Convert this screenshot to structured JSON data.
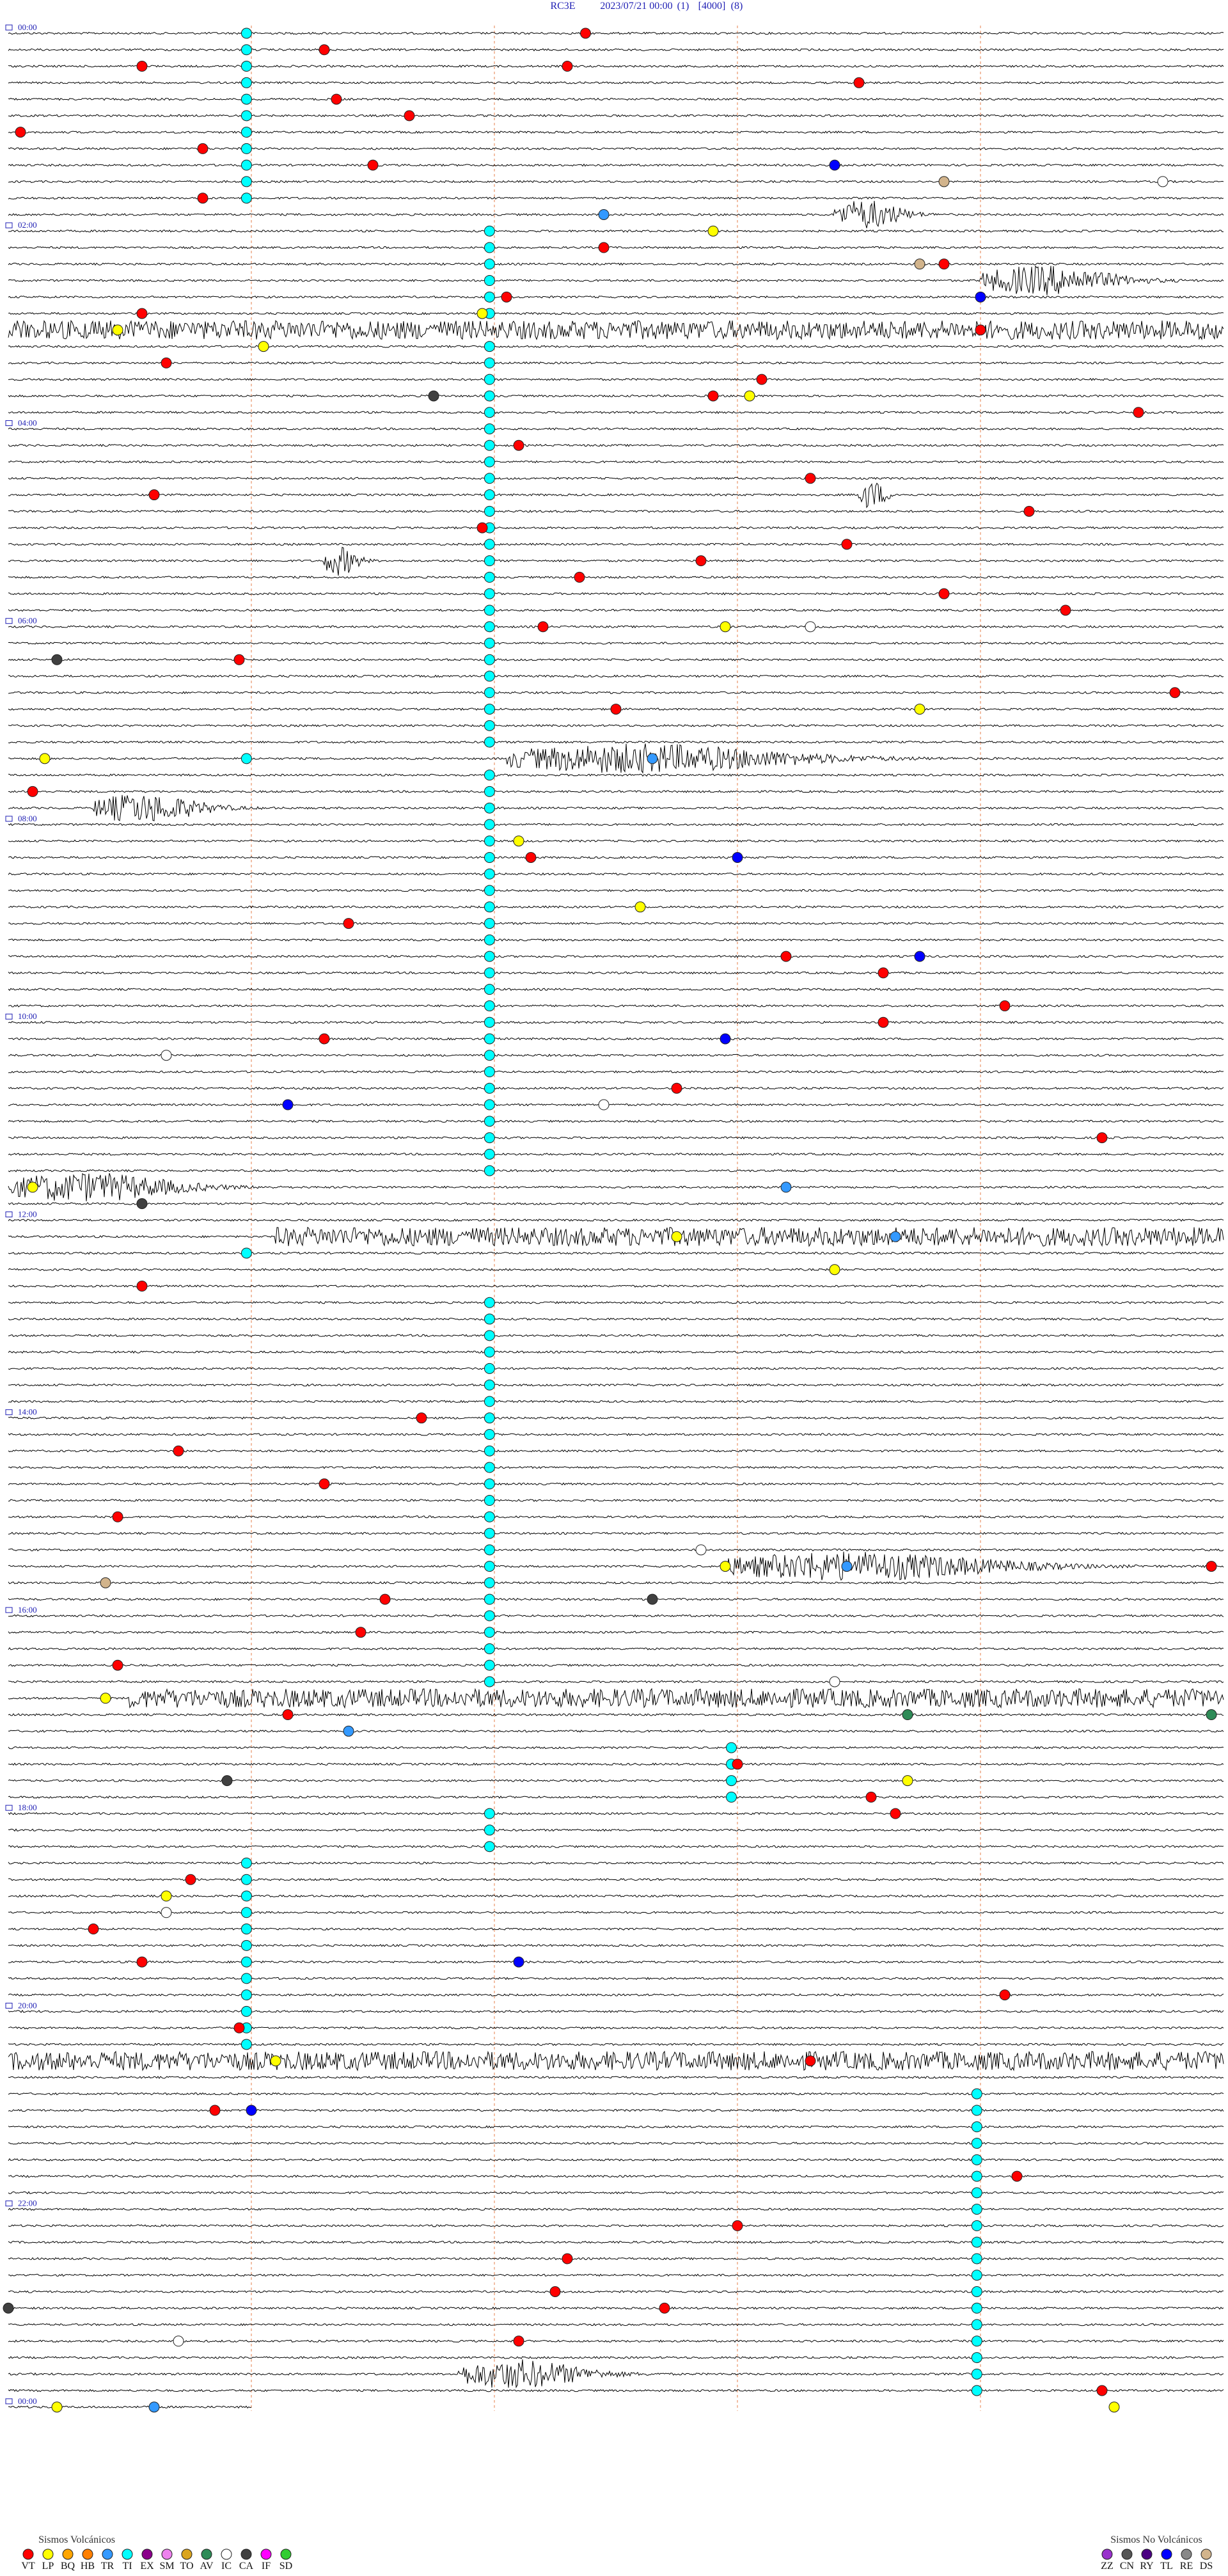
{
  "header": {
    "station": "RC3E",
    "datetime": "2023/07/21 00:00",
    "channel": "(1)",
    "gain": "[4000]",
    "scale": "(8)"
  },
  "time_labels": [
    {
      "line": 0,
      "text": "00:00"
    },
    {
      "line": 12,
      "text": "02:00"
    },
    {
      "line": 24,
      "text": "04:00"
    },
    {
      "line": 36,
      "text": "06:00"
    },
    {
      "line": 48,
      "text": "08:00"
    },
    {
      "line": 60,
      "text": "10:00"
    },
    {
      "line": 72,
      "text": "12:00"
    },
    {
      "line": 84,
      "text": "14:00"
    },
    {
      "line": 96,
      "text": "16:00"
    },
    {
      "line": 108,
      "text": "18:00"
    },
    {
      "line": 120,
      "text": "20:00"
    },
    {
      "line": 132,
      "text": "22:00"
    },
    {
      "line": 144,
      "text": "00:00"
    }
  ],
  "legend": {
    "volcanic": {
      "title": "Sismos Volcánicos",
      "items": [
        {
          "code": "VT",
          "color": "#ff0000"
        },
        {
          "code": "LP",
          "color": "#ffff00"
        },
        {
          "code": "BQ",
          "color": "#ffa500"
        },
        {
          "code": "HB",
          "color": "#ff7f00"
        },
        {
          "code": "TR",
          "color": "#3399ff"
        },
        {
          "code": "TI",
          "color": "#00ffff"
        },
        {
          "code": "EX",
          "color": "#8b008b"
        },
        {
          "code": "SM",
          "color": "#ee82ee"
        },
        {
          "code": "TO",
          "color": "#daa520"
        },
        {
          "code": "AV",
          "color": "#2e8b57"
        },
        {
          "code": "IC",
          "color": "#ffffff"
        },
        {
          "code": "CA",
          "color": "#404040"
        },
        {
          "code": "IF",
          "color": "#ff00ff"
        },
        {
          "code": "SD",
          "color": "#32cd32"
        }
      ]
    },
    "non_volcanic": {
      "title": "Sismos No Volcánicos",
      "items": [
        {
          "code": "ZZ",
          "color": "#9932cc"
        },
        {
          "code": "CN",
          "color": "#555555"
        },
        {
          "code": "RY",
          "color": "#4b0082"
        },
        {
          "code": "TL",
          "color": "#0000ff"
        },
        {
          "code": "RE",
          "color": "#888888"
        },
        {
          "code": "DS",
          "color": "#d2b48c"
        }
      ]
    }
  },
  "signals": [
    [
      11,
      6.8,
      1.0
    ],
    [
      15,
      8.0,
      2.0
    ],
    [
      18,
      0,
      10
    ],
    [
      28,
      7.0,
      0.4
    ],
    [
      32,
      2.6,
      0.5
    ],
    [
      44,
      4.1,
      4.3
    ],
    [
      47,
      0.7,
      1.6
    ],
    [
      70,
      0,
      2.5
    ],
    [
      73,
      2.2,
      7.8
    ],
    [
      93,
      5.9,
      4.1
    ],
    [
      101,
      1.0,
      9.0
    ],
    [
      123,
      0,
      10
    ],
    [
      142,
      3.7,
      1.9
    ]
  ],
  "events": [
    [
      "TI",
      0,
      1.96
    ],
    [
      "TI",
      1,
      1.96
    ],
    [
      "TI",
      2,
      1.96
    ],
    [
      "TI",
      3,
      1.96
    ],
    [
      "TI",
      4,
      1.96
    ],
    [
      "TI",
      5,
      1.96
    ],
    [
      "TI",
      6,
      1.96
    ],
    [
      "TI",
      7,
      1.96
    ],
    [
      "TI",
      8,
      1.96
    ],
    [
      "TI",
      9,
      1.96
    ],
    [
      "TI",
      10,
      1.96
    ],
    [
      "TI",
      12,
      3.96
    ],
    [
      "TI",
      13,
      3.96
    ],
    [
      "TI",
      14,
      3.96
    ],
    [
      "TI",
      15,
      3.96
    ],
    [
      "TI",
      16,
      3.96
    ],
    [
      "TI",
      17,
      3.96
    ],
    [
      "TI",
      19,
      3.96
    ],
    [
      "TI",
      20,
      3.96
    ],
    [
      "TI",
      21,
      3.96
    ],
    [
      "TI",
      22,
      3.96
    ],
    [
      "TI",
      23,
      3.96
    ],
    [
      "TI",
      24,
      3.96
    ],
    [
      "TI",
      25,
      3.96
    ],
    [
      "TI",
      26,
      3.96
    ],
    [
      "TI",
      27,
      3.96
    ],
    [
      "TI",
      28,
      3.96
    ],
    [
      "TI",
      29,
      3.96
    ],
    [
      "TI",
      30,
      3.96
    ],
    [
      "TI",
      31,
      3.96
    ],
    [
      "TI",
      32,
      3.96
    ],
    [
      "TI",
      33,
      3.96
    ],
    [
      "TI",
      34,
      3.96
    ],
    [
      "TI",
      35,
      3.96
    ],
    [
      "TI",
      36,
      3.96
    ],
    [
      "TI",
      37,
      3.96
    ],
    [
      "TI",
      38,
      3.96
    ],
    [
      "TI",
      39,
      3.96
    ],
    [
      "TI",
      40,
      3.96
    ],
    [
      "TI",
      41,
      3.96
    ],
    [
      "TI",
      42,
      3.96
    ],
    [
      "TI",
      43,
      3.96
    ],
    [
      "TI",
      45,
      3.96
    ],
    [
      "TI",
      46,
      3.96
    ],
    [
      "TI",
      47,
      3.96
    ],
    [
      "TI",
      48,
      3.96
    ],
    [
      "TI",
      49,
      3.96
    ],
    [
      "TI",
      50,
      3.96
    ],
    [
      "TI",
      51,
      3.96
    ],
    [
      "TI",
      52,
      3.96
    ],
    [
      "TI",
      53,
      3.96
    ],
    [
      "TI",
      54,
      3.96
    ],
    [
      "TI",
      55,
      3.96
    ],
    [
      "TI",
      56,
      3.96
    ],
    [
      "TI",
      57,
      3.96
    ],
    [
      "TI",
      58,
      3.96
    ],
    [
      "TI",
      59,
      3.96
    ],
    [
      "TI",
      60,
      3.96
    ],
    [
      "TI",
      61,
      3.96
    ],
    [
      "TI",
      62,
      3.96
    ],
    [
      "TI",
      63,
      3.96
    ],
    [
      "TI",
      64,
      3.96
    ],
    [
      "TI",
      65,
      3.96
    ],
    [
      "TI",
      66,
      3.96
    ],
    [
      "TI",
      67,
      3.96
    ],
    [
      "TI",
      68,
      3.96
    ],
    [
      "TI",
      69,
      3.96
    ],
    [
      "TI",
      44,
      1.96
    ],
    [
      "TI",
      74,
      1.96
    ],
    [
      "TI",
      77,
      3.96
    ],
    [
      "TI",
      78,
      3.96
    ],
    [
      "TI",
      79,
      3.96
    ],
    [
      "TI",
      80,
      3.96
    ],
    [
      "TI",
      81,
      3.96
    ],
    [
      "TI",
      82,
      3.96
    ],
    [
      "TI",
      83,
      3.96
    ],
    [
      "TI",
      84,
      3.96
    ],
    [
      "TI",
      85,
      3.96
    ],
    [
      "TI",
      86,
      3.96
    ],
    [
      "TI",
      87,
      3.96
    ],
    [
      "TI",
      88,
      3.96
    ],
    [
      "TI",
      89,
      3.96
    ],
    [
      "TI",
      90,
      3.96
    ],
    [
      "TI",
      91,
      3.96
    ],
    [
      "TI",
      92,
      3.96
    ],
    [
      "TI",
      93,
      3.96
    ],
    [
      "TI",
      94,
      3.96
    ],
    [
      "TI",
      95,
      3.96
    ],
    [
      "TI",
      96,
      3.96
    ],
    [
      "TI",
      97,
      3.96
    ],
    [
      "TI",
      98,
      3.96
    ],
    [
      "TI",
      99,
      3.96
    ],
    [
      "TI",
      100,
      3.96
    ],
    [
      "TI",
      104,
      5.95
    ],
    [
      "TI",
      105,
      5.95
    ],
    [
      "TI",
      106,
      5.95
    ],
    [
      "TI",
      107,
      5.95
    ],
    [
      "TI",
      108,
      3.96
    ],
    [
      "TI",
      109,
      3.96
    ],
    [
      "TI",
      110,
      3.96
    ],
    [
      "TI",
      111,
      1.96
    ],
    [
      "TI",
      112,
      1.96
    ],
    [
      "TI",
      113,
      1.96
    ],
    [
      "TI",
      114,
      1.96
    ],
    [
      "TI",
      115,
      1.96
    ],
    [
      "TI",
      116,
      1.96
    ],
    [
      "TI",
      117,
      1.96
    ],
    [
      "TI",
      118,
      1.96
    ],
    [
      "TI",
      119,
      1.96
    ],
    [
      "TI",
      120,
      1.96
    ],
    [
      "TI",
      121,
      1.96
    ],
    [
      "TI",
      122,
      1.96
    ],
    [
      "TI",
      125,
      7.97
    ],
    [
      "TI",
      126,
      7.97
    ],
    [
      "TI",
      127,
      7.97
    ],
    [
      "TI",
      128,
      7.97
    ],
    [
      "TI",
      129,
      7.97
    ],
    [
      "TI",
      130,
      7.97
    ],
    [
      "TI",
      131,
      7.97
    ],
    [
      "TI",
      132,
      7.97
    ],
    [
      "TI",
      133,
      7.97
    ],
    [
      "TI",
      134,
      7.97
    ],
    [
      "TI",
      135,
      7.97
    ],
    [
      "TI",
      136,
      7.97
    ],
    [
      "TI",
      137,
      7.97
    ],
    [
      "TI",
      138,
      7.97
    ],
    [
      "TI",
      139,
      7.97
    ],
    [
      "TI",
      140,
      7.97
    ],
    [
      "TI",
      141,
      7.97
    ],
    [
      "TI",
      142,
      7.97
    ],
    [
      "TI",
      143,
      7.97
    ],
    [
      "VT",
      0,
      4.75
    ],
    [
      "VT",
      1,
      2.6
    ],
    [
      "VT",
      2,
      1.1
    ],
    [
      "VT",
      2,
      4.6
    ],
    [
      "VT",
      3,
      7.0
    ],
    [
      "VT",
      4,
      2.7
    ],
    [
      "VT",
      5,
      3.3
    ],
    [
      "VT",
      6,
      0.1
    ],
    [
      "VT",
      7,
      1.6
    ],
    [
      "VT",
      8,
      3.0
    ],
    [
      "VT",
      10,
      1.6
    ],
    [
      "VT",
      13,
      4.9
    ],
    [
      "VT",
      14,
      7.7
    ],
    [
      "VT",
      16,
      4.1
    ],
    [
      "VT",
      17,
      1.1
    ],
    [
      "VT",
      18,
      8.0
    ],
    [
      "VT",
      20,
      1.3
    ],
    [
      "VT",
      21,
      6.2
    ],
    [
      "VT",
      22,
      5.8
    ],
    [
      "VT",
      23,
      9.3
    ],
    [
      "VT",
      25,
      4.2
    ],
    [
      "VT",
      27,
      6.6
    ],
    [
      "VT",
      28,
      1.2
    ],
    [
      "VT",
      29,
      8.4
    ],
    [
      "VT",
      30,
      3.9
    ],
    [
      "VT",
      31,
      6.9
    ],
    [
      "VT",
      32,
      5.7
    ],
    [
      "VT",
      33,
      4.7
    ],
    [
      "VT",
      34,
      7.7
    ],
    [
      "VT",
      35,
      8.7
    ],
    [
      "VT",
      36,
      4.4
    ],
    [
      "VT",
      38,
      1.9
    ],
    [
      "VT",
      40,
      9.6
    ],
    [
      "VT",
      41,
      5.0
    ],
    [
      "VT",
      46,
      0.2
    ],
    [
      "VT",
      50,
      4.3
    ],
    [
      "VT",
      54,
      2.8
    ],
    [
      "VT",
      56,
      6.4
    ],
    [
      "VT",
      57,
      7.2
    ],
    [
      "VT",
      59,
      8.2
    ],
    [
      "VT",
      60,
      7.2
    ],
    [
      "VT",
      61,
      2.6
    ],
    [
      "VT",
      64,
      5.5
    ],
    [
      "VT",
      67,
      9.0
    ],
    [
      "VT",
      76,
      1.1
    ],
    [
      "VT",
      84,
      3.4
    ],
    [
      "VT",
      86,
      1.4
    ],
    [
      "VT",
      88,
      2.6
    ],
    [
      "VT",
      90,
      0.9
    ],
    [
      "VT",
      93,
      9.9
    ],
    [
      "VT",
      95,
      3.1
    ],
    [
      "VT",
      97,
      2.9
    ],
    [
      "VT",
      99,
      0.9
    ],
    [
      "VT",
      102,
      2.3
    ],
    [
      "VT",
      105,
      6.0
    ],
    [
      "VT",
      107,
      7.1
    ],
    [
      "VT",
      108,
      7.3
    ],
    [
      "VT",
      112,
      1.5
    ],
    [
      "VT",
      115,
      0.7
    ],
    [
      "VT",
      117,
      1.1
    ],
    [
      "VT",
      119,
      8.2
    ],
    [
      "VT",
      121,
      1.9
    ],
    [
      "VT",
      123,
      6.6
    ],
    [
      "VT",
      126,
      1.7
    ],
    [
      "VT",
      130,
      8.3
    ],
    [
      "VT",
      133,
      6.0
    ],
    [
      "VT",
      135,
      4.6
    ],
    [
      "VT",
      137,
      4.5
    ],
    [
      "VT",
      138,
      5.4
    ],
    [
      "VT",
      140,
      4.2
    ],
    [
      "VT",
      143,
      9.0
    ],
    [
      "LP",
      12,
      5.8
    ],
    [
      "LP",
      17,
      3.9
    ],
    [
      "LP",
      18,
      0.9
    ],
    [
      "LP",
      19,
      2.1
    ],
    [
      "LP",
      22,
      6.1
    ],
    [
      "LP",
      36,
      5.9
    ],
    [
      "LP",
      41,
      7.5
    ],
    [
      "LP",
      44,
      0.3
    ],
    [
      "LP",
      49,
      4.2
    ],
    [
      "LP",
      53,
      5.2
    ],
    [
      "LP",
      70,
      0.2
    ],
    [
      "LP",
      73,
      5.5
    ],
    [
      "LP",
      75,
      6.8
    ],
    [
      "LP",
      93,
      5.9
    ],
    [
      "LP",
      101,
      0.8
    ],
    [
      "LP",
      106,
      7.4
    ],
    [
      "LP",
      113,
      1.3
    ],
    [
      "LP",
      123,
      2.2
    ],
    [
      "LP",
      144,
      0.4
    ],
    [
      "LP",
      144,
      9.1
    ],
    [
      "TL",
      8,
      6.8
    ],
    [
      "TL",
      16,
      8.0
    ],
    [
      "TL",
      50,
      6.0
    ],
    [
      "TL",
      56,
      7.5
    ],
    [
      "TL",
      61,
      5.9
    ],
    [
      "TL",
      65,
      2.3
    ],
    [
      "TL",
      117,
      4.2
    ],
    [
      "TL",
      126,
      2.0
    ],
    [
      "IC",
      9,
      9.5
    ],
    [
      "IC",
      36,
      6.6
    ],
    [
      "IC",
      62,
      1.3
    ],
    [
      "IC",
      65,
      4.9
    ],
    [
      "IC",
      92,
      5.7
    ],
    [
      "IC",
      100,
      6.8
    ],
    [
      "IC",
      114,
      1.3
    ],
    [
      "IC",
      140,
      1.4
    ],
    [
      "CA",
      22,
      3.5
    ],
    [
      "CA",
      38,
      0.4
    ],
    [
      "CA",
      71,
      1.1
    ],
    [
      "CA",
      95,
      5.3
    ],
    [
      "CA",
      106,
      1.8
    ],
    [
      "CA",
      138,
      0.0
    ],
    [
      "TR",
      11,
      4.9
    ],
    [
      "TR",
      44,
      5.3
    ],
    [
      "TR",
      70,
      6.4
    ],
    [
      "TR",
      73,
      7.3
    ],
    [
      "TR",
      93,
      6.9
    ],
    [
      "TR",
      103,
      2.8
    ],
    [
      "TR",
      144,
      1.2
    ],
    [
      "AV",
      102,
      7.4
    ],
    [
      "AV",
      102,
      9.9
    ],
    [
      "DS",
      14,
      7.5
    ],
    [
      "DS",
      9,
      7.7
    ],
    [
      "DS",
      94,
      0.8
    ]
  ]
}
